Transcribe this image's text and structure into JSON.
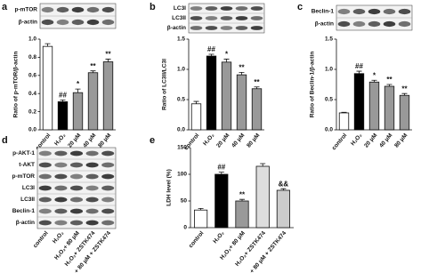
{
  "chart_data": [
    {
      "label": "a",
      "type": "bar",
      "blot_labels": [
        "p-mTOR",
        "β-actin"
      ],
      "ylabel": "Ratio of p-mTOR/β-actin",
      "categories": [
        "control",
        "H₂O₂",
        "20 μM",
        "40 μM",
        "80 μM"
      ],
      "values": [
        0.92,
        0.31,
        0.41,
        0.63,
        0.75
      ],
      "errors": [
        0.03,
        0.02,
        0.04,
        0.02,
        0.03
      ],
      "annotations": [
        null,
        "##",
        "*",
        "**",
        "**"
      ],
      "colors": [
        "#ffffff",
        "#000000",
        "#999999",
        "#999999",
        "#999999"
      ],
      "ylim": [
        0,
        1.0
      ],
      "yticks": [
        {
          "value": 0,
          "label": "0.0"
        },
        0.2,
        0.4,
        0.6,
        0.8,
        {
          "value": 1.0,
          "label": "1.0"
        }
      ]
    },
    {
      "label": "b",
      "type": "bar",
      "blot_labels": [
        "LC3I",
        "LC3II",
        "β-actin"
      ],
      "ylabel": "Ratio of LC3II/LC3I",
      "categories": [
        "control",
        "H₂O₂",
        "20 μM",
        "40 μM",
        "80 μM"
      ],
      "values": [
        0.43,
        1.22,
        1.12,
        0.91,
        0.68
      ],
      "errors": [
        0.04,
        0.03,
        0.05,
        0.04,
        0.03
      ],
      "annotations": [
        null,
        "##",
        "*",
        "**",
        "**"
      ],
      "colors": [
        "#ffffff",
        "#000000",
        "#999999",
        "#999999",
        "#999999"
      ],
      "ylim": [
        0,
        1.5
      ],
      "yticks": [
        {
          "value": 0,
          "label": "0.0"
        },
        0.5,
        {
          "value": 1.0,
          "label": "1.0"
        },
        1.5
      ]
    },
    {
      "label": "c",
      "type": "bar",
      "blot_labels": [
        "Beclin-1",
        "β-actin"
      ],
      "ylabel": "Ratio of Beclin-1/β-actin",
      "categories": [
        "control",
        "H₂O₂",
        "20 μM",
        "40 μM",
        "80 μM"
      ],
      "values": [
        0.28,
        0.93,
        0.79,
        0.72,
        0.57
      ],
      "errors": [
        0.01,
        0.04,
        0.03,
        0.03,
        0.03
      ],
      "annotations": [
        null,
        "##",
        "*",
        "**",
        "**"
      ],
      "colors": [
        "#ffffff",
        "#000000",
        "#999999",
        "#999999",
        "#999999"
      ],
      "ylim": [
        0,
        1.5
      ],
      "yticks": [
        {
          "value": 0,
          "label": "0.0"
        },
        0.5,
        {
          "value": 1.0,
          "label": "1.0"
        },
        1.5
      ]
    },
    {
      "label": "d",
      "type": "blot",
      "blot_labels": [
        "p-AKT-1",
        "t-AKT",
        "p-mTOR",
        "LC3I",
        "LC3II",
        "Beclin-1",
        "β-actin"
      ],
      "categories": [
        "control",
        "H₂O₂",
        "H₂O₂+ 80 μM",
        "H₂O₂+ ZSTK474",
        "H₂O₂+ 80 μM + ZSTK474"
      ]
    },
    {
      "label": "e",
      "type": "bar",
      "ylabel": "LDH level (%)",
      "categories": [
        "control",
        "H₂O₂",
        "H₂O₂+ 80 μM",
        "H₂O₂+ ZSTK474",
        "H₂O₂+ 80 μM + ZSTK474"
      ],
      "values": [
        33,
        100,
        50,
        115,
        70
      ],
      "errors": [
        3,
        4,
        3,
        5,
        3
      ],
      "annotations": [
        null,
        "##",
        "**",
        null,
        "&&"
      ],
      "colors": [
        "#ffffff",
        "#000000",
        "#999999",
        "#dddddd",
        "#cccccc"
      ],
      "ylim": [
        0,
        150
      ],
      "yticks": [
        0,
        50,
        100,
        150
      ]
    }
  ]
}
